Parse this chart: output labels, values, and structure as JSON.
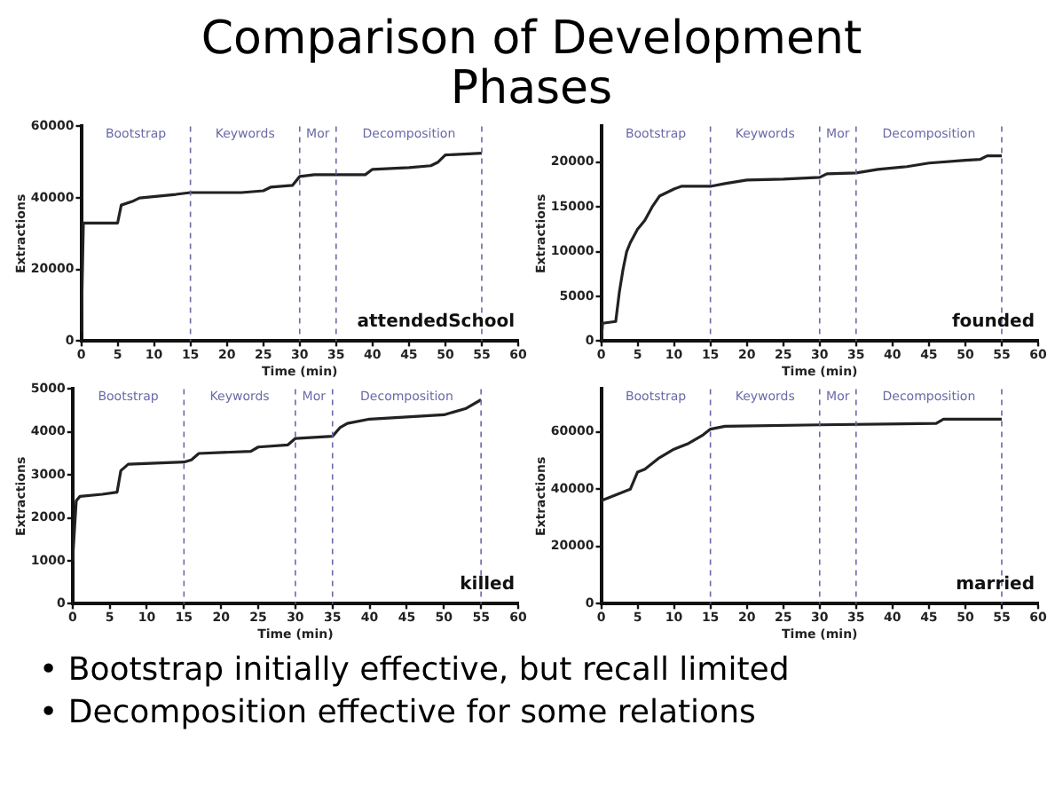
{
  "chart_data": [
    {
      "type": "line",
      "title": "Comparison of Development Phases",
      "xlabel": "Time (min)",
      "ylabel": "Extractions",
      "annotations": [
        "attendedSchool"
      ],
      "grid": false,
      "legend": false,
      "marker": "none",
      "line_style": "solid",
      "xlim": [
        0,
        60
      ],
      "xticks": [
        0,
        5,
        10,
        15,
        20,
        25,
        30,
        35,
        40,
        45,
        50,
        55,
        60
      ],
      "ylim": [
        0,
        60000
      ],
      "yticks": [
        0,
        20000,
        40000,
        60000
      ],
      "ref_lines": [
        {
          "axis": "x",
          "value": 15,
          "label": "Bootstrap",
          "line_style": "dashed",
          "color": "#6a6aa8"
        },
        {
          "axis": "x",
          "value": 30,
          "label": "Keywords",
          "line_style": "dashed",
          "color": "#6a6aa8"
        },
        {
          "axis": "x",
          "value": 35,
          "label": "Mor",
          "line_style": "dashed",
          "color": "#6a6aa8"
        },
        {
          "axis": "x",
          "value": 55,
          "label": "Decomposition",
          "line_style": "dashed",
          "color": "#6a6aa8"
        }
      ],
      "series": [
        {
          "color": "#222222",
          "x": [
            0,
            0.3,
            5,
            5.5,
            7,
            8,
            13,
            15,
            22,
            25,
            26,
            29,
            30,
            32,
            39,
            40,
            45,
            48,
            49,
            50,
            55
          ],
          "values": [
            2500,
            33000,
            33000,
            38000,
            39000,
            40000,
            41000,
            41500,
            41500,
            42000,
            43000,
            43500,
            46000,
            46500,
            46500,
            48000,
            48500,
            49000,
            50000,
            52000,
            52500
          ]
        }
      ]
    },
    {
      "type": "line",
      "xlabel": "Time (min)",
      "ylabel": "Extractions",
      "annotations": [
        "founded"
      ],
      "grid": false,
      "legend": false,
      "marker": "none",
      "line_style": "solid",
      "xlim": [
        0,
        60
      ],
      "xticks": [
        0,
        5,
        10,
        15,
        20,
        25,
        30,
        35,
        40,
        45,
        50,
        55,
        60
      ],
      "ylim": [
        0,
        24000
      ],
      "yticks": [
        0,
        5000,
        10000,
        15000,
        20000
      ],
      "ref_lines": [
        {
          "axis": "x",
          "value": 15,
          "label": "Bootstrap",
          "line_style": "dashed",
          "color": "#6a6aa8"
        },
        {
          "axis": "x",
          "value": 30,
          "label": "Keywords",
          "line_style": "dashed",
          "color": "#6a6aa8"
        },
        {
          "axis": "x",
          "value": 35,
          "label": "Mor",
          "line_style": "dashed",
          "color": "#6a6aa8"
        },
        {
          "axis": "x",
          "value": 55,
          "label": "Decomposition",
          "line_style": "dashed",
          "color": "#6a6aa8"
        }
      ],
      "series": [
        {
          "color": "#222222",
          "x": [
            0,
            0.2,
            2,
            2.5,
            3,
            3.5,
            4,
            5,
            6,
            7,
            8,
            10,
            11,
            15,
            17,
            20,
            25,
            30,
            31,
            35,
            38,
            42,
            45,
            50,
            52,
            53,
            55
          ],
          "values": [
            0,
            2000,
            2200,
            5500,
            8000,
            10000,
            11000,
            12500,
            13500,
            15000,
            16200,
            17000,
            17300,
            17300,
            17600,
            18000,
            18100,
            18300,
            18700,
            18800,
            19200,
            19500,
            19900,
            20200,
            20300,
            20700,
            20700
          ]
        }
      ]
    },
    {
      "type": "line",
      "xlabel": "Time (min)",
      "ylabel": "Extractions",
      "annotations": [
        "killed"
      ],
      "grid": false,
      "legend": false,
      "marker": "none",
      "line_style": "solid",
      "xlim": [
        0,
        60
      ],
      "xticks": [
        0,
        5,
        10,
        15,
        20,
        25,
        30,
        35,
        40,
        45,
        50,
        55,
        60
      ],
      "ylim": [
        0,
        5000
      ],
      "yticks": [
        0,
        1000,
        2000,
        3000,
        4000,
        5000
      ],
      "ref_lines": [
        {
          "axis": "x",
          "value": 15,
          "label": "Bootstrap",
          "line_style": "dashed",
          "color": "#6a6aa8"
        },
        {
          "axis": "x",
          "value": 30,
          "label": "Keywords",
          "line_style": "dashed",
          "color": "#6a6aa8"
        },
        {
          "axis": "x",
          "value": 35,
          "label": "Mor",
          "line_style": "dashed",
          "color": "#6a6aa8"
        },
        {
          "axis": "x",
          "value": 55,
          "label": "Decomposition",
          "line_style": "dashed",
          "color": "#6a6aa8"
        }
      ],
      "series": [
        {
          "color": "#222222",
          "x": [
            0,
            0.5,
            1,
            4,
            6,
            6.5,
            7.5,
            15,
            16,
            17,
            24,
            25,
            29,
            30,
            35,
            36,
            37,
            40,
            45,
            50,
            53,
            55
          ],
          "values": [
            1000,
            2400,
            2500,
            2550,
            2600,
            3100,
            3250,
            3300,
            3350,
            3500,
            3550,
            3650,
            3700,
            3850,
            3900,
            4100,
            4200,
            4300,
            4350,
            4400,
            4550,
            4750
          ]
        }
      ]
    },
    {
      "type": "line",
      "xlabel": "Time (min)",
      "ylabel": "Extractions",
      "annotations": [
        "married",
        "• Bootstrap initially effective, but recall limited",
        "• Decomposition effective for some relations"
      ],
      "grid": false,
      "legend": false,
      "marker": "none",
      "line_style": "solid",
      "xlim": [
        0,
        60
      ],
      "xticks": [
        0,
        5,
        10,
        15,
        20,
        25,
        30,
        35,
        40,
        45,
        50,
        55,
        60
      ],
      "ylim": [
        0,
        75000
      ],
      "yticks": [
        0,
        20000,
        40000,
        60000
      ],
      "ref_lines": [
        {
          "axis": "x",
          "value": 15,
          "label": "Bootstrap",
          "line_style": "dashed",
          "color": "#6a6aa8"
        },
        {
          "axis": "x",
          "value": 30,
          "label": "Keywords",
          "line_style": "dashed",
          "color": "#6a6aa8"
        },
        {
          "axis": "x",
          "value": 35,
          "label": "Mor",
          "line_style": "dashed",
          "color": "#6a6aa8"
        },
        {
          "axis": "x",
          "value": 55,
          "label": "Decomposition",
          "line_style": "dashed",
          "color": "#6a6aa8"
        }
      ],
      "series": [
        {
          "color": "#222222",
          "x": [
            0,
            1,
            4,
            5,
            6,
            8,
            10,
            12,
            14,
            15,
            17,
            30,
            46,
            47,
            55
          ],
          "values": [
            36000,
            37000,
            40000,
            46000,
            47000,
            51000,
            54000,
            56000,
            59000,
            61000,
            62000,
            62500,
            63000,
            64500,
            64500
          ]
        }
      ]
    }
  ]
}
